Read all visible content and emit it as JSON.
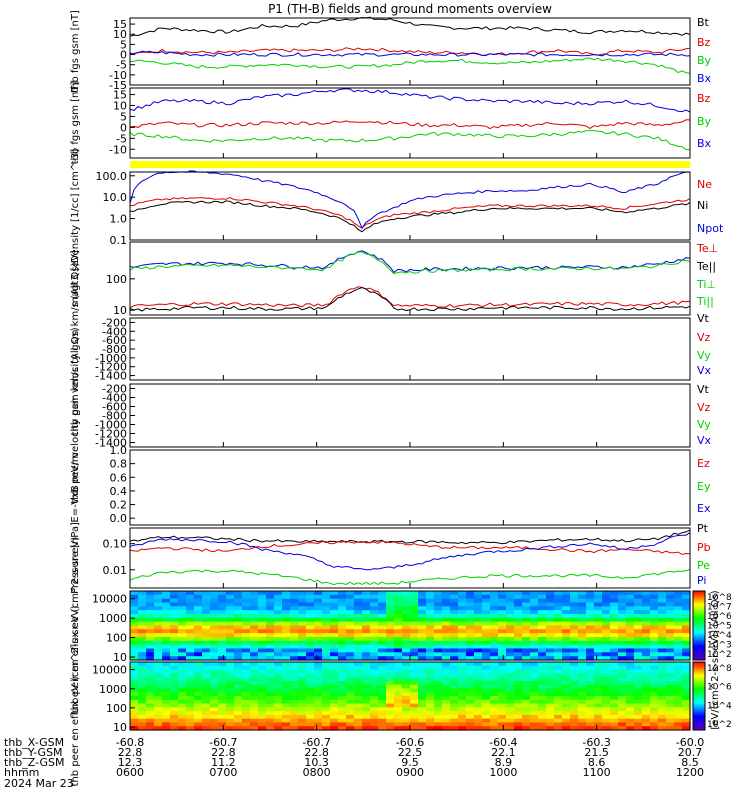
{
  "title": "P1 (TH-B) fields and ground moments overview",
  "date_label": "2024 Mar 23",
  "colors": {
    "black": "#000000",
    "red": "#e00000",
    "green": "#00d000",
    "blue": "#0000e0",
    "yellow": "#ffff00"
  },
  "bottom_axis": {
    "rows": [
      {
        "label": "thb_X-GSM",
        "values": [
          "-60.8",
          "-60.7",
          "-60.7",
          "-60.6",
          "-60.4",
          "-60.3",
          "-60.0"
        ]
      },
      {
        "label": "thb_Y-GSM",
        "values": [
          "22.8",
          "22.8",
          "22.8",
          "22.5",
          "22.1",
          "21.5",
          "20.7"
        ]
      },
      {
        "label": "thb_Z-GSM",
        "values": [
          "12.3",
          "11.2",
          "10.3",
          "9.5",
          "8.9",
          "8.6",
          "8.5"
        ]
      },
      {
        "label": "hhmm",
        "values": [
          "0600",
          "0700",
          "0800",
          "0900",
          "1000",
          "1100",
          "1200"
        ]
      }
    ]
  },
  "colorbar_label": "[eV/(cm^2-s-sr-eV)] (All Qs)",
  "chart_data": [
    {
      "type": "line",
      "id": "fgs_mag",
      "ylabel": "thb fgs gsm [nT]",
      "ylim": [
        -15,
        18
      ],
      "ticks": [
        "15",
        "10",
        "5",
        "0",
        "-5",
        "-10",
        "-15"
      ],
      "legend": [
        "Bt",
        "Bz",
        "By",
        "Bx"
      ],
      "series": [
        {
          "name": "Bt",
          "color": "black",
          "values": [
            9,
            13,
            12,
            11,
            14,
            14,
            17,
            18,
            17,
            14,
            13,
            13,
            13,
            12,
            11,
            12,
            11,
            10
          ]
        },
        {
          "name": "Bz",
          "color": "red",
          "values": [
            0,
            2,
            1,
            1,
            2,
            2,
            2,
            3,
            2,
            1,
            1,
            0,
            1,
            2,
            0,
            2,
            1,
            3
          ]
        },
        {
          "name": "By",
          "color": "green",
          "values": [
            -3,
            -4,
            -6,
            -6,
            -5,
            -5,
            -6,
            -6,
            -5,
            -3,
            -3,
            -4,
            -4,
            -3,
            -2,
            -3,
            -5,
            -10
          ]
        },
        {
          "name": "Bx",
          "color": "blue",
          "values": [
            1,
            1,
            0,
            0,
            0,
            0,
            0,
            0,
            0,
            0,
            0,
            0,
            0,
            0,
            0,
            0,
            0,
            0
          ]
        }
      ]
    },
    {
      "type": "line",
      "id": "fgs_mag2",
      "ylabel": "thb fgs gsm [nT]",
      "ylim": [
        -14,
        18
      ],
      "ticks": [
        "15",
        "10",
        "5",
        "0",
        "-5",
        "-10"
      ],
      "legend": [
        "Bz",
        "By",
        "Bx"
      ],
      "series": [
        {
          "name": "Bz",
          "color": "red",
          "values": [
            0,
            2,
            1,
            1,
            2,
            2,
            2,
            3,
            2,
            1,
            1,
            0,
            1,
            2,
            0,
            2,
            1,
            3
          ]
        },
        {
          "name": "By",
          "color": "green",
          "values": [
            -3,
            -4,
            -6,
            -6,
            -5,
            -5,
            -6,
            -6,
            -5,
            -3,
            -3,
            -4,
            -4,
            -3,
            -2,
            -3,
            -5,
            -10
          ]
        },
        {
          "name": "Bx",
          "color": "blue",
          "values": [
            8,
            12,
            12,
            11,
            14,
            15,
            17,
            17,
            16,
            14,
            13,
            12,
            12,
            11,
            11,
            12,
            10,
            7
          ]
        }
      ]
    },
    {
      "type": "line",
      "id": "density",
      "ylabel": "Density [1/cc] [cm^-3]",
      "scale": "log",
      "ylim": [
        0.1,
        150
      ],
      "ticks": [
        "100.0",
        "10.0",
        "1.0",
        "0.1"
      ],
      "legend": [
        "Ne",
        "Ni",
        "Npot"
      ],
      "series": [
        {
          "name": "Ne",
          "color": "red",
          "values": [
            4,
            8,
            9,
            9,
            6,
            4,
            2,
            0.3,
            1.5,
            2,
            3,
            4,
            4,
            4,
            4,
            3,
            5,
            8
          ]
        },
        {
          "name": "Ni",
          "color": "black",
          "values": [
            2,
            5,
            6,
            6,
            4,
            3,
            1.5,
            0.2,
            1,
            1.5,
            2,
            3,
            3,
            3,
            3,
            2,
            3,
            5
          ]
        },
        {
          "name": "Npot",
          "color": "blue",
          "values": [
            5,
            150,
            150,
            120,
            60,
            30,
            10,
            0.2,
            3,
            10,
            15,
            20,
            20,
            30,
            40,
            15,
            40,
            150
          ]
        }
      ]
    },
    {
      "type": "line",
      "id": "temp",
      "ylabel": "magt3 [eV]",
      "scale": "log",
      "ylim": [
        7,
        1500
      ],
      "ticks": [
        "100",
        "10"
      ],
      "legend": [
        "Te⊥",
        "Te||",
        "Ti⊥",
        "Ti||"
      ],
      "series": [
        {
          "name": "Te⊥",
          "color": "red",
          "values": [
            13,
            15,
            16,
            16,
            15,
            14,
            15,
            60,
            14,
            14,
            14,
            15,
            15,
            16,
            16,
            15,
            16,
            18
          ]
        },
        {
          "name": "Te||",
          "color": "black",
          "values": [
            10,
            11,
            12,
            12,
            11,
            11,
            12,
            50,
            11,
            11,
            11,
            12,
            12,
            12,
            12,
            11,
            12,
            13
          ]
        },
        {
          "name": "Ti⊥",
          "color": "blue",
          "values": [
            230,
            300,
            310,
            320,
            280,
            250,
            230,
            800,
            180,
            200,
            210,
            220,
            230,
            230,
            240,
            230,
            300,
            450
          ]
        },
        {
          "name": "Ti||",
          "color": "green",
          "values": [
            200,
            250,
            260,
            270,
            240,
            220,
            200,
            700,
            160,
            180,
            190,
            200,
            210,
            210,
            220,
            210,
            260,
            400
          ]
        }
      ]
    },
    {
      "type": "line",
      "id": "peir_vel",
      "ylabel": "thb peir velocity gsm km/s (All Qs)",
      "ylim": [
        -1500,
        -100
      ],
      "ticks": [
        "-200",
        "-400",
        "-600",
        "-800",
        "-1000",
        "-1200",
        "-1400"
      ],
      "legend": [
        "Vt",
        "Vz",
        "Vy",
        "Vx"
      ],
      "series": []
    },
    {
      "type": "line",
      "id": "peer_vel",
      "ylabel": "thb peer velocity gsm km/s (All Qs)",
      "ylim": [
        -1500,
        -100
      ],
      "ticks": [
        "-200",
        "-400",
        "-600",
        "-800",
        "-1000",
        "-1200",
        "-1400"
      ],
      "legend": [
        "Vt",
        "Vz",
        "Vy",
        "Vx"
      ],
      "series": []
    },
    {
      "type": "line",
      "id": "efield",
      "ylabel": "E=-VxB mV/m",
      "ylim": [
        -0.1,
        1.0
      ],
      "ticks": [
        "1.0",
        "0.8",
        "0.6",
        "0.4",
        "0.2",
        "0.0"
      ],
      "legend": [
        "Ez",
        "Ey",
        "Ex"
      ],
      "series": []
    },
    {
      "type": "line",
      "id": "pressure",
      "ylabel": "Pressure [nPa]",
      "scale": "log",
      "ylim": [
        0.002,
        0.4
      ],
      "ticks": [
        "0.10",
        "0.01"
      ],
      "legend": [
        "Pt",
        "Pb",
        "Pe",
        "Pi"
      ],
      "series": [
        {
          "name": "Pt",
          "color": "black",
          "values": [
            0.12,
            0.18,
            0.17,
            0.15,
            0.13,
            0.12,
            0.12,
            0.12,
            0.12,
            0.12,
            0.11,
            0.11,
            0.12,
            0.14,
            0.15,
            0.13,
            0.15,
            0.3
          ]
        },
        {
          "name": "Pb",
          "color": "red",
          "values": [
            0.05,
            0.07,
            0.06,
            0.05,
            0.08,
            0.09,
            0.11,
            0.12,
            0.11,
            0.08,
            0.07,
            0.07,
            0.07,
            0.06,
            0.05,
            0.06,
            0.05,
            0.04
          ]
        },
        {
          "name": "Pe",
          "color": "green",
          "values": [
            0.004,
            0.008,
            0.009,
            0.009,
            0.007,
            0.005,
            0.003,
            0.003,
            0.003,
            0.004,
            0.005,
            0.006,
            0.006,
            0.006,
            0.006,
            0.005,
            0.007,
            0.01
          ]
        },
        {
          "name": "Pi",
          "color": "blue",
          "values": [
            0.07,
            0.15,
            0.14,
            0.12,
            0.06,
            0.04,
            0.015,
            0.01,
            0.012,
            0.02,
            0.035,
            0.05,
            0.06,
            0.08,
            0.1,
            0.06,
            0.1,
            0.25
          ]
        }
      ]
    },
    {
      "type": "heatmap",
      "id": "peir_spec",
      "ylabel": "thb peir en eflux eV (cm^2-s-sr-eV)",
      "scale": "log",
      "ylim": [
        7,
        25000
      ],
      "ticks": [
        "10000",
        "1000",
        "100",
        "10"
      ],
      "colorbar_ticks": [
        "10^8",
        "10^7",
        "10^6",
        "10^5",
        "10^4",
        "10^3",
        "10^2"
      ]
    },
    {
      "type": "heatmap",
      "id": "peer_spec",
      "ylabel": "thb peer en eflux eV (cm^2-s-sr-eV)",
      "scale": "log",
      "ylim": [
        7,
        25000
      ],
      "ticks": [
        "10000",
        "1000",
        "100",
        "10"
      ],
      "colorbar_ticks": [
        "10^8",
        "10^6",
        "10^4",
        "10^2"
      ]
    }
  ]
}
